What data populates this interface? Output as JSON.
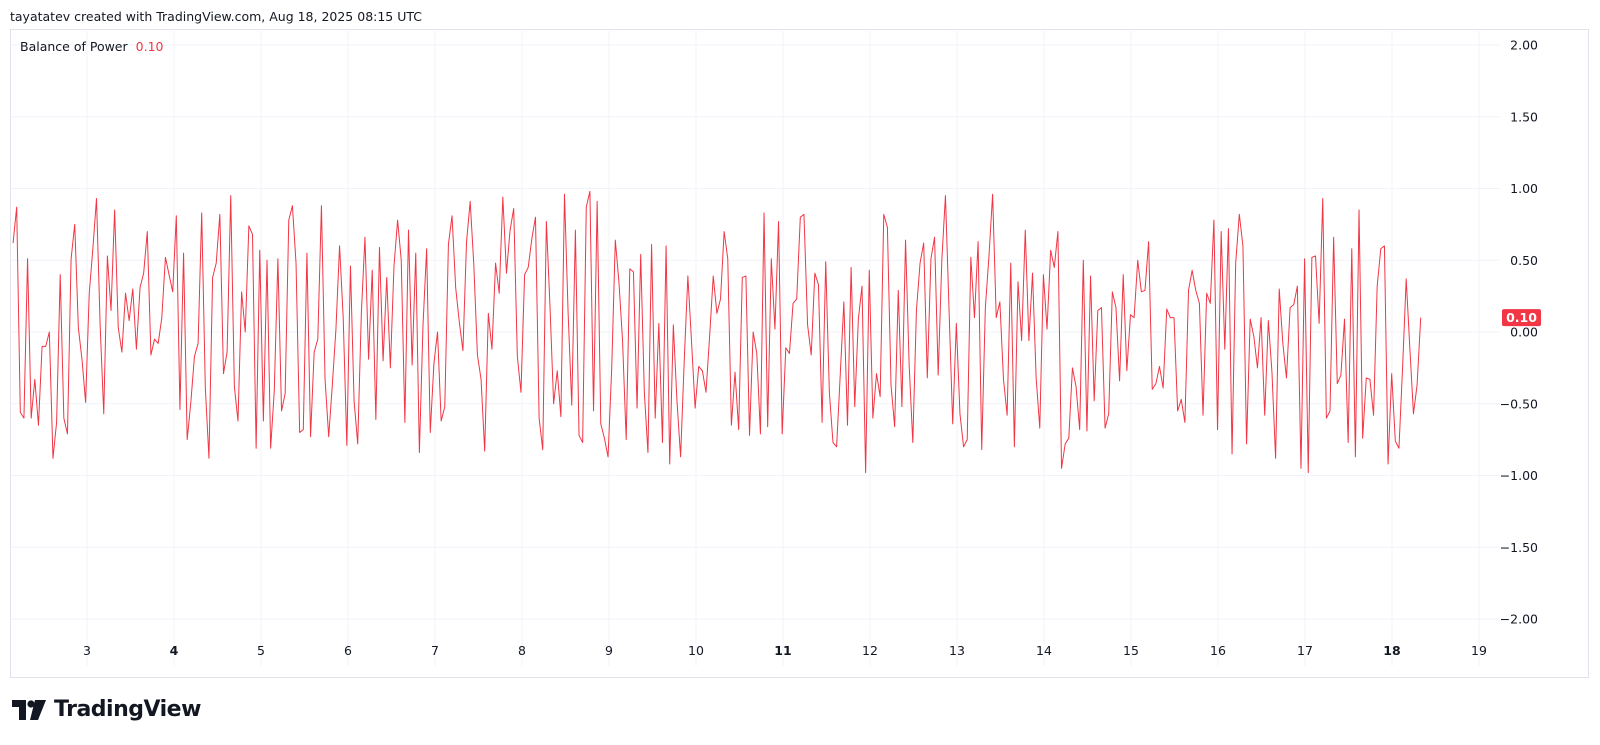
{
  "header": {
    "caption": "tayatatev created with TradingView.com, Aug 18, 2025 08:15 UTC"
  },
  "legend": {
    "indicator_name": "Balance of Power",
    "indicator_value": "0.10"
  },
  "brand": {
    "name": "TradingView",
    "logo_icon": "tradingview-logo-icon"
  },
  "colors": {
    "line": "#f23645",
    "grid": "#f0f3fa",
    "axis_text": "#131722",
    "badge_bg": "#f23645",
    "badge_text": "#ffffff"
  },
  "chart_data": {
    "type": "line",
    "series": [
      {
        "name": "Balance of Power",
        "x_start_day": 2.15,
        "x_end_day": 18.33,
        "values": [
          0.62,
          0.87,
          -0.56,
          -0.6,
          0.51,
          -0.6,
          -0.33,
          -0.65,
          -0.1,
          -0.1,
          0.0,
          -0.88,
          -0.63,
          0.4,
          -0.6,
          -0.71,
          0.51,
          0.75,
          0.03,
          -0.19,
          -0.49,
          0.27,
          0.58,
          0.93,
          0.05,
          -0.57,
          0.53,
          0.15,
          0.85,
          0.03,
          -0.14,
          0.27,
          0.08,
          0.3,
          -0.12,
          0.31,
          0.41,
          0.7,
          -0.16,
          -0.05,
          -0.08,
          0.1,
          0.52,
          0.4,
          0.28,
          0.81,
          -0.54,
          0.55,
          -0.75,
          -0.49,
          -0.17,
          -0.08,
          0.83,
          -0.39,
          -0.88,
          0.38,
          0.48,
          0.82,
          -0.29,
          -0.14,
          0.95,
          -0.38,
          -0.62,
          0.28,
          0.0,
          0.74,
          0.68,
          -0.81,
          0.57,
          -0.62,
          0.5,
          -0.81,
          -0.41,
          0.51,
          -0.55,
          -0.43,
          0.78,
          0.88,
          0.48,
          -0.7,
          -0.68,
          0.55,
          -0.73,
          -0.14,
          -0.05,
          0.88,
          -0.33,
          -0.73,
          -0.37,
          0.02,
          0.6,
          0.1,
          -0.79,
          0.46,
          -0.48,
          -0.78,
          0.13,
          0.66,
          -0.19,
          0.43,
          -0.61,
          0.59,
          -0.2,
          0.38,
          -0.25,
          0.46,
          0.78,
          0.5,
          -0.63,
          0.71,
          -0.23,
          0.55,
          -0.84,
          0.05,
          0.58,
          -0.7,
          -0.22,
          0.0,
          -0.62,
          -0.52,
          0.61,
          0.81,
          0.31,
          0.07,
          -0.13,
          0.63,
          0.91,
          0.47,
          -0.16,
          -0.33,
          -0.83,
          0.13,
          -0.12,
          0.48,
          0.27,
          0.94,
          0.41,
          0.71,
          0.86,
          -0.17,
          -0.42,
          0.4,
          0.45,
          0.65,
          0.8,
          -0.6,
          -0.82,
          0.77,
          0.18,
          -0.5,
          -0.27,
          -0.59,
          0.96,
          0.13,
          -0.51,
          0.71,
          -0.72,
          -0.77,
          0.87,
          0.98,
          -0.55,
          0.91,
          -0.64,
          -0.74,
          -0.87,
          -0.26,
          0.64,
          0.35,
          -0.06,
          -0.75,
          0.44,
          0.42,
          -0.53,
          0.54,
          -0.42,
          -0.84,
          0.61,
          -0.6,
          0.06,
          -0.77,
          0.6,
          -0.92,
          0.05,
          -0.48,
          -0.87,
          -0.2,
          0.39,
          -0.06,
          -0.53,
          -0.24,
          -0.27,
          -0.42,
          -0.03,
          0.39,
          0.13,
          0.23,
          0.7,
          0.51,
          -0.65,
          -0.28,
          -0.68,
          0.38,
          0.39,
          -0.72,
          0.0,
          -0.15,
          -0.71,
          0.83,
          -0.66,
          0.51,
          0.02,
          0.77,
          -0.71,
          -0.11,
          -0.15,
          0.2,
          0.23,
          0.8,
          0.82,
          0.05,
          -0.16,
          0.41,
          0.33,
          -0.63,
          0.49,
          -0.42,
          -0.77,
          -0.8,
          -0.3,
          0.21,
          -0.65,
          0.45,
          -0.52,
          0.09,
          0.32,
          -0.98,
          0.43,
          -0.6,
          -0.29,
          -0.45,
          0.82,
          0.73,
          -0.37,
          -0.66,
          0.29,
          -0.52,
          0.64,
          -0.23,
          -0.77,
          0.15,
          0.48,
          0.62,
          -0.32,
          0.51,
          0.66,
          -0.3,
          0.5,
          0.95,
          0.15,
          -0.64,
          0.06,
          -0.57,
          -0.8,
          -0.75,
          0.52,
          0.1,
          0.63,
          -0.82,
          0.17,
          0.53,
          0.96,
          0.1,
          0.21,
          -0.33,
          -0.58,
          0.48,
          -0.8,
          0.35,
          -0.06,
          0.71,
          -0.06,
          0.41,
          -0.32,
          -0.67,
          0.4,
          0.02,
          0.57,
          0.45,
          0.7,
          -0.95,
          -0.78,
          -0.74,
          -0.25,
          -0.38,
          -0.68,
          0.5,
          -0.69,
          0.39,
          -0.48,
          0.15,
          0.17,
          -0.67,
          -0.57,
          0.28,
          0.17,
          -0.34,
          0.4,
          -0.27,
          0.12,
          0.1,
          0.5,
          0.28,
          0.29,
          0.63,
          -0.4,
          -0.36,
          -0.24,
          -0.39,
          0.16,
          0.1,
          0.1,
          -0.55,
          -0.47,
          -0.63,
          0.29,
          0.43,
          0.29,
          0.2,
          -0.58,
          0.27,
          0.2,
          0.78,
          -0.68,
          0.7,
          -0.12,
          0.72,
          -0.85,
          0.48,
          0.82,
          0.6,
          -0.78,
          0.09,
          -0.03,
          -0.25,
          0.1,
          -0.58,
          0.08,
          -0.28,
          -0.88,
          0.3,
          -0.08,
          -0.32,
          0.17,
          0.19,
          0.32,
          -0.95,
          0.51,
          -0.98,
          0.52,
          0.53,
          0.06,
          0.93,
          -0.6,
          -0.55,
          0.66,
          -0.36,
          -0.3,
          0.09,
          -0.77,
          0.58,
          -0.87,
          0.85,
          -0.74,
          -0.32,
          -0.33,
          -0.58,
          0.32,
          0.58,
          0.6,
          -0.92,
          -0.29,
          -0.76,
          -0.81,
          -0.25,
          0.37,
          -0.11,
          -0.57,
          -0.37,
          0.1
        ]
      }
    ],
    "last_value": 0.1,
    "ylim": [
      -2.0,
      2.0
    ],
    "y_ticks": [
      2.0,
      1.5,
      1.0,
      0.5,
      0.0,
      -0.5,
      -1.0,
      -1.5,
      -2.0
    ],
    "y_tick_labels": [
      "2.00",
      "1.50",
      "1.00",
      "0.50",
      "0.00",
      "−0.50",
      "−1.00",
      "−1.50",
      "−2.00"
    ],
    "x_ticks": [
      3,
      4,
      5,
      6,
      7,
      8,
      9,
      10,
      11,
      12,
      13,
      14,
      15,
      16,
      17,
      18,
      19
    ],
    "x_tick_labels": [
      "3",
      "4",
      "5",
      "6",
      "7",
      "8",
      "9",
      "10",
      "11",
      "12",
      "13",
      "14",
      "15",
      "16",
      "17",
      "18",
      "19"
    ],
    "x_bold_ticks": [
      "4",
      "11",
      "18"
    ],
    "grid": true,
    "y_axis_side": "right",
    "title": "",
    "xlabel": "",
    "ylabel": ""
  }
}
